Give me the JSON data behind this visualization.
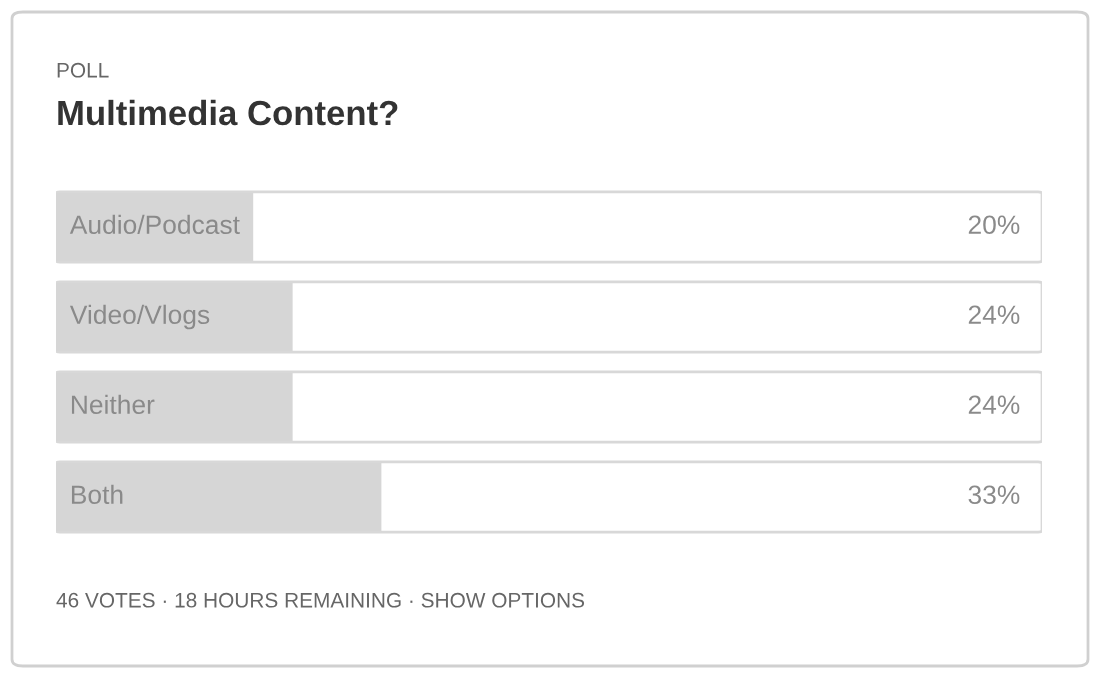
{
  "chart_data": {
    "type": "bar",
    "orientation": "horizontal",
    "subtitle": "POLL",
    "title": "Multimedia Content?",
    "categories": [
      "Audio/Podcast",
      "Video/Vlogs",
      "Neither",
      "Both"
    ],
    "values": [
      20,
      24,
      24,
      33
    ],
    "value_labels": [
      "20%",
      "24%",
      "24%",
      "33%"
    ],
    "color": "#d6d6d6",
    "xlim": [
      0,
      100
    ],
    "tick_labels": false,
    "annotations": [
      "46 VOTES · 18 HOURS REMAINING · SHOW OPTIONS"
    ]
  }
}
